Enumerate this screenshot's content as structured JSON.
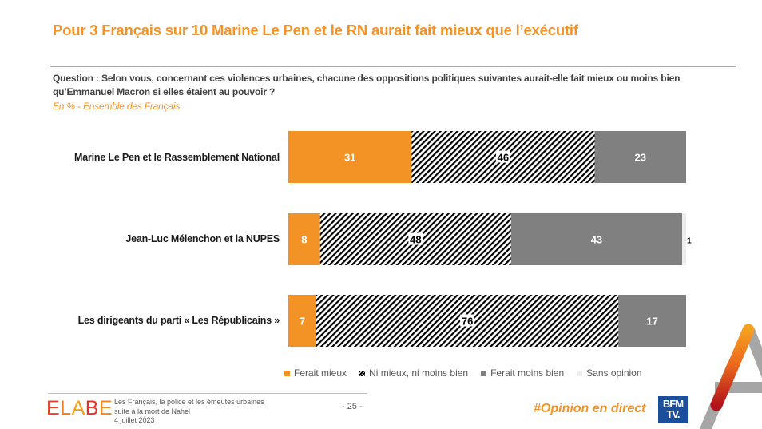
{
  "header": {
    "title": "Pour 3 Français sur 10 Marine Le Pen et le RN aurait fait mieux que l’exécutif",
    "question": "Question : Selon vous, concernant ces violences urbaines, chacune des oppositions politiques suivantes aurait-elle fait mieux ou moins bien qu’Emmanuel Macron si elles étaient au pouvoir ?",
    "subtitle": "En % - Ensemble des Français"
  },
  "colors": {
    "accent": "#F39325",
    "ferait_mieux": "#F39325",
    "ferait_moins_bien": "#808080",
    "sans_opinion": "#EDEDED",
    "hatch": "#000000"
  },
  "chart_data": {
    "type": "bar",
    "orientation": "horizontal-stacked-100",
    "title": "Pour 3 Français sur 10 Marine Le Pen et le RN aurait fait mieux que l’exécutif",
    "xlabel": "",
    "ylabel": "",
    "unit": "%",
    "xlim": [
      0,
      100
    ],
    "categories": [
      "Marine Le Pen et le Rassemblement National",
      "Jean-Luc Mélenchon et la NUPES",
      "Les dirigeants du parti « Les Républicains »"
    ],
    "series": [
      {
        "name": "Ferait mieux",
        "values": [
          31,
          8,
          7
        ],
        "pattern": "solid",
        "color": "#F39325",
        "label_color": "#ffffff"
      },
      {
        "name": "Ni mieux, ni moins bien",
        "values": [
          46,
          48,
          76
        ],
        "pattern": "hatch",
        "color": "#000000",
        "label_color": "#000000"
      },
      {
        "name": "Ferait moins bien",
        "values": [
          23,
          43,
          17
        ],
        "pattern": "solid",
        "color": "#808080",
        "label_color": "#ffffff"
      },
      {
        "name": "Sans opinion",
        "values": [
          0,
          1,
          0
        ],
        "pattern": "solid",
        "color": "#EDEDED",
        "label_color": "#000000"
      }
    ],
    "legend": "bottom",
    "grid": false
  },
  "legend": {
    "items": [
      {
        "label": "Ferait mieux"
      },
      {
        "label": "Ni mieux, ni moins bien"
      },
      {
        "label": "Ferait moins bien"
      },
      {
        "label": "Sans opinion"
      }
    ]
  },
  "footer": {
    "brand": "ELABE",
    "study_line1": "Les Français, la police et les émeutes urbaines",
    "study_line2": "suite à la mort de Nahel",
    "date": "4 juillet 2023",
    "page": "- 25 -",
    "hashtag": "#Opinion en direct",
    "partner_logo_line1": "BFM",
    "partner_logo_line2": "TV."
  }
}
